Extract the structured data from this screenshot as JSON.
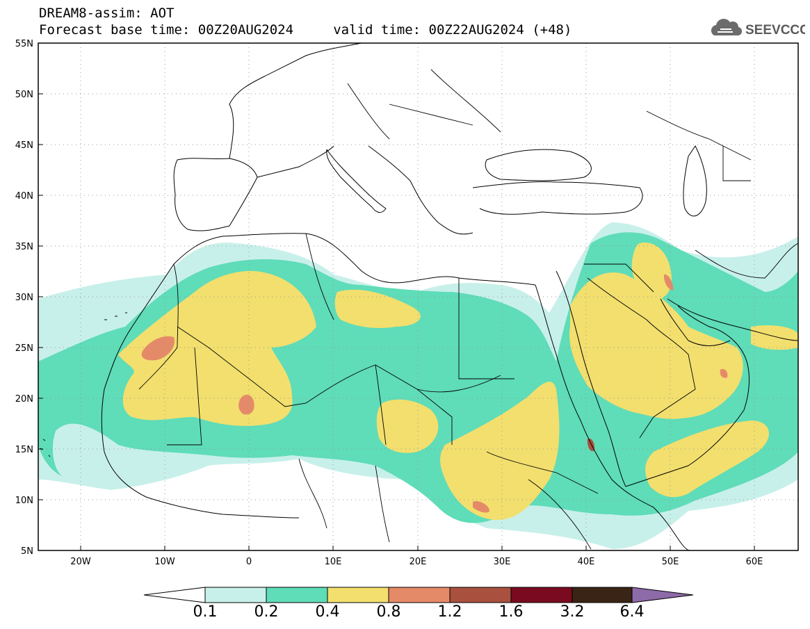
{
  "header": {
    "line1": "DREAM8-assim: AOT",
    "line2": "Forecast base time: 00Z20AUG2024     valid time: 00Z22AUG2024 (+48)"
  },
  "logo": {
    "text": "SEEVCCC",
    "icon": "cloud-logo-icon"
  },
  "map": {
    "lon_range": [
      -25,
      65
    ],
    "lat_range": [
      5,
      55
    ],
    "lon_ticks": [
      "20W",
      "10W",
      "0",
      "10E",
      "20E",
      "30E",
      "40E",
      "50E",
      "60E"
    ],
    "lat_ticks": [
      "5N",
      "10N",
      "15N",
      "20N",
      "25N",
      "30N",
      "35N",
      "40N",
      "45N",
      "50N",
      "55N"
    ],
    "grid": "dotted",
    "colors": {
      "c1": "#c8f0ea",
      "c2": "#5fdcb8",
      "c3": "#f2df6e",
      "c4": "#e58a68",
      "c5": "#a9503f"
    }
  },
  "colorbar": {
    "labels": [
      "0.1",
      "0.2",
      "0.4",
      "0.8",
      "1.2",
      "1.6",
      "3.2",
      "6.4"
    ],
    "colors": [
      "#ffffff",
      "#c8f0ea",
      "#5fdcb8",
      "#f2df6e",
      "#e58a68",
      "#a9503f",
      "#7a0a20",
      "#3a2415",
      "#8d6aa8"
    ]
  }
}
